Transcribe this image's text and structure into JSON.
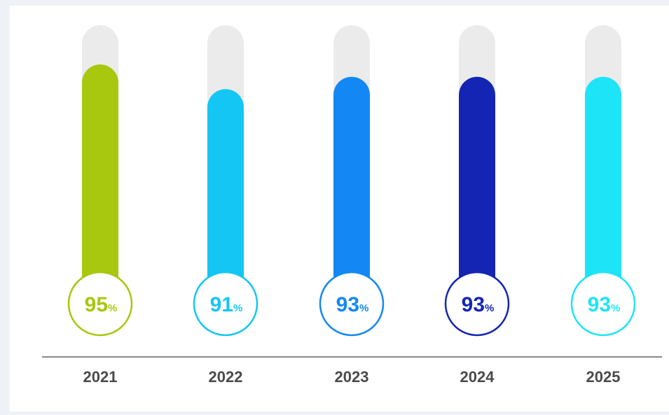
{
  "chart_data": {
    "type": "bar",
    "categories": [
      "2021",
      "2022",
      "2023",
      "2024",
      "2025"
    ],
    "values": [
      95,
      91,
      93,
      93,
      93
    ],
    "value_suffix": "%",
    "ylim": [
      0,
      100
    ],
    "colors": [
      "#a8c70f",
      "#14c6f4",
      "#1388f4",
      "#1425b4",
      "#1ee4f8"
    ],
    "track_color": "#ebebeb",
    "axis_color": "#8a8a8a",
    "grid": false,
    "legend": "none"
  }
}
